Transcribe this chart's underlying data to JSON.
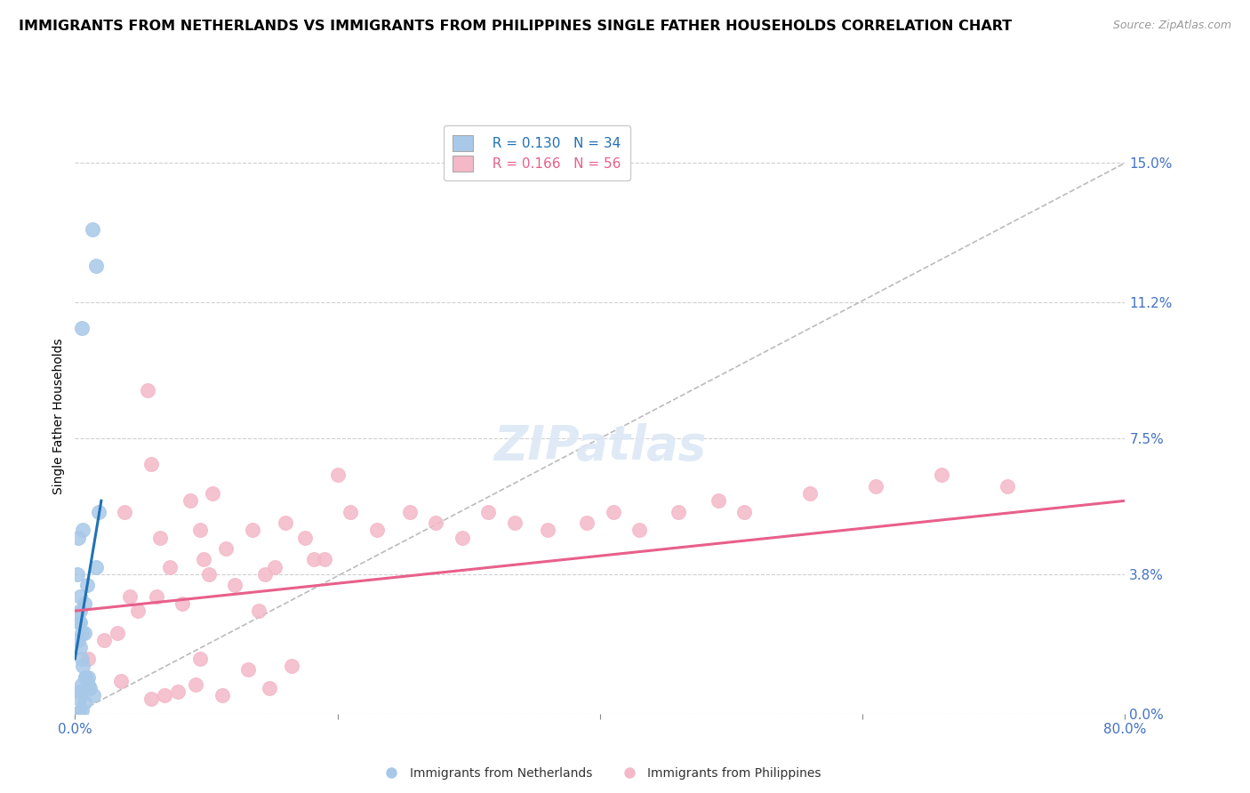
{
  "title": "IMMIGRANTS FROM NETHERLANDS VS IMMIGRANTS FROM PHILIPPINES SINGLE FATHER HOUSEHOLDS CORRELATION CHART",
  "source": "Source: ZipAtlas.com",
  "ylabel": "Single Father Households",
  "ytick_values": [
    0.0,
    3.8,
    7.5,
    11.2,
    15.0
  ],
  "xlim": [
    0.0,
    80.0
  ],
  "ylim": [
    0.0,
    16.2
  ],
  "legend_blue_R": "R = 0.130",
  "legend_blue_N": "N = 34",
  "legend_pink_R": "R = 0.166",
  "legend_pink_N": "N = 56",
  "legend_label_blue": "Immigrants from Netherlands",
  "legend_label_pink": "Immigrants from Philippines",
  "blue_color": "#a8c8e8",
  "pink_color": "#f4b8c8",
  "blue_line_color": "#2171b5",
  "pink_line_color": "#e8608a",
  "diagonal_color": "#bbbbbb",
  "title_fontsize": 11.5,
  "source_fontsize": 9,
  "axis_label_fontsize": 10,
  "tick_label_color": "#4472c4",
  "blue_scatter_x": [
    1.3,
    1.6,
    0.5,
    0.3,
    0.7,
    0.4,
    0.5,
    0.6,
    0.8,
    1.0,
    0.2,
    0.35,
    0.4,
    0.5,
    0.25,
    0.6,
    0.9,
    0.7,
    0.4,
    0.3,
    1.4,
    1.1,
    0.8,
    0.5,
    0.35,
    1.8,
    1.6,
    0.25,
    0.4,
    0.15,
    1.0,
    0.7,
    0.5,
    0.3
  ],
  "blue_scatter_y": [
    13.2,
    12.2,
    10.5,
    2.5,
    2.2,
    1.8,
    1.5,
    1.3,
    1.0,
    0.8,
    3.8,
    2.8,
    2.5,
    2.2,
    2.0,
    5.0,
    3.5,
    3.0,
    0.6,
    0.4,
    0.5,
    0.7,
    1.0,
    0.8,
    0.6,
    5.5,
    4.0,
    4.8,
    3.2,
    2.7,
    1.0,
    0.3,
    0.1,
    0.05
  ],
  "pink_scatter_x": [
    1.0,
    5.5,
    9.5,
    4.2,
    5.8,
    3.8,
    6.5,
    7.2,
    8.8,
    9.8,
    10.5,
    11.5,
    13.5,
    14.5,
    16.0,
    17.5,
    19.0,
    21.0,
    23.0,
    25.5,
    27.5,
    29.5,
    31.5,
    33.5,
    36.0,
    39.0,
    41.0,
    43.0,
    46.0,
    49.0,
    51.0,
    56.0,
    61.0,
    66.0,
    71.0,
    4.8,
    6.2,
    8.2,
    10.2,
    12.2,
    15.2,
    18.2,
    2.2,
    3.2,
    5.8,
    7.8,
    9.2,
    11.2,
    13.2,
    14.8,
    16.5,
    3.5,
    6.8,
    9.5,
    14.0,
    20.0
  ],
  "pink_scatter_y": [
    1.5,
    8.8,
    5.0,
    3.2,
    6.8,
    5.5,
    4.8,
    4.0,
    5.8,
    4.2,
    6.0,
    4.5,
    5.0,
    3.8,
    5.2,
    4.8,
    4.2,
    5.5,
    5.0,
    5.5,
    5.2,
    4.8,
    5.5,
    5.2,
    5.0,
    5.2,
    5.5,
    5.0,
    5.5,
    5.8,
    5.5,
    6.0,
    6.2,
    6.5,
    6.2,
    2.8,
    3.2,
    3.0,
    3.8,
    3.5,
    4.0,
    4.2,
    2.0,
    2.2,
    0.4,
    0.6,
    0.8,
    0.5,
    1.2,
    0.7,
    1.3,
    0.9,
    0.5,
    1.5,
    2.8,
    6.5
  ],
  "blue_line_x": [
    0.0,
    2.0
  ],
  "blue_line_y": [
    1.5,
    5.8
  ],
  "pink_line_x": [
    0.0,
    80.0
  ],
  "pink_line_y": [
    2.8,
    5.8
  ]
}
